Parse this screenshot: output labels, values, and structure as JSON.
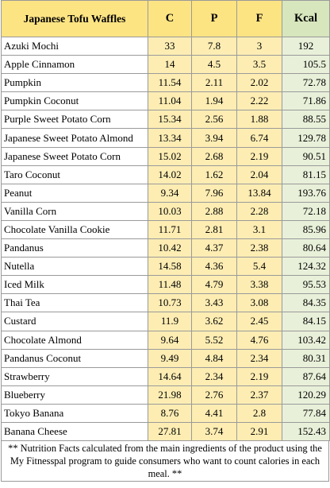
{
  "table": {
    "headers": {
      "name": "Japanese Tofu Waffles",
      "c": "C",
      "p": "P",
      "f": "F",
      "kcal": "Kcal"
    },
    "rows": [
      {
        "name": "Azuki Mochi",
        "c": "33",
        "p": "7.8",
        "f": "3",
        "kcal": "192"
      },
      {
        "name": "Apple Cinnamon",
        "c": "14",
        "p": "4.5",
        "f": "3.5",
        "kcal": "105.5"
      },
      {
        "name": "Pumpkin",
        "c": "11.54",
        "p": "2.11",
        "f": "2.02",
        "kcal": "72.78"
      },
      {
        "name": "Pumpkin Coconut",
        "c": "11.04",
        "p": "1.94",
        "f": "2.22",
        "kcal": "71.86"
      },
      {
        "name": "Purple Sweet Potato Corn",
        "c": "15.34",
        "p": "2.56",
        "f": "1.88",
        "kcal": "88.55"
      },
      {
        "name": "Japanese Sweet Potato Almond",
        "c": "13.34",
        "p": "3.94",
        "f": "6.74",
        "kcal": "129.78"
      },
      {
        "name": "Japanese Sweet Potato Corn",
        "c": "15.02",
        "p": "2.68",
        "f": "2.19",
        "kcal": "90.51"
      },
      {
        "name": "Taro Coconut",
        "c": "14.02",
        "p": "1.62",
        "f": "2.04",
        "kcal": "81.15"
      },
      {
        "name": "Peanut",
        "c": "9.34",
        "p": "7.96",
        "f": "13.84",
        "kcal": "193.76"
      },
      {
        "name": "Vanilla Corn",
        "c": "10.03",
        "p": "2.88",
        "f": "2.28",
        "kcal": "72.18"
      },
      {
        "name": "Chocolate Vanilla Cookie",
        "c": "11.71",
        "p": "2.81",
        "f": "3.1",
        "kcal": "85.96"
      },
      {
        "name": "Pandanus",
        "c": "10.42",
        "p": "4.37",
        "f": "2.38",
        "kcal": "80.64"
      },
      {
        "name": "Nutella",
        "c": "14.58",
        "p": "4.36",
        "f": "5.4",
        "kcal": "124.32"
      },
      {
        "name": "Iced Milk",
        "c": "11.48",
        "p": "4.79",
        "f": "3.38",
        "kcal": "95.53"
      },
      {
        "name": "Thai Tea",
        "c": "10.73",
        "p": "3.43",
        "f": "3.08",
        "kcal": "84.35"
      },
      {
        "name": "Custard",
        "c": "11.9",
        "p": "3.62",
        "f": "2.45",
        "kcal": "84.15"
      },
      {
        "name": "Chocolate Almond",
        "c": "9.64",
        "p": "5.52",
        "f": "4.76",
        "kcal": "103.42"
      },
      {
        "name": "Pandanus Coconut",
        "c": "9.49",
        "p": "4.84",
        "f": "2.34",
        "kcal": "80.31"
      },
      {
        "name": "Strawberry",
        "c": "14.64",
        "p": "2.34",
        "f": "2.19",
        "kcal": "87.64"
      },
      {
        "name": "Blueberry",
        "c": "21.98",
        "p": "2.76",
        "f": "2.37",
        "kcal": "120.29"
      },
      {
        "name": "Tokyo Banana",
        "c": "8.76",
        "p": "4.41",
        "f": "2.8",
        "kcal": "77.84"
      },
      {
        "name": "Banana Cheese",
        "c": "27.81",
        "p": "3.74",
        "f": "2.91",
        "kcal": "152.43"
      }
    ]
  },
  "footnote": "** Nutrition Facts calculated from the main ingredients of the product using the My Fitnesspal program to guide consumers who want to count calories in each meal. **",
  "colors": {
    "header_yellow": "#fde483",
    "header_green": "#d7e6bc",
    "cell_yellow": "#fdedb3",
    "cell_green": "#e8f0d9",
    "grid": "#9a9a9a"
  }
}
